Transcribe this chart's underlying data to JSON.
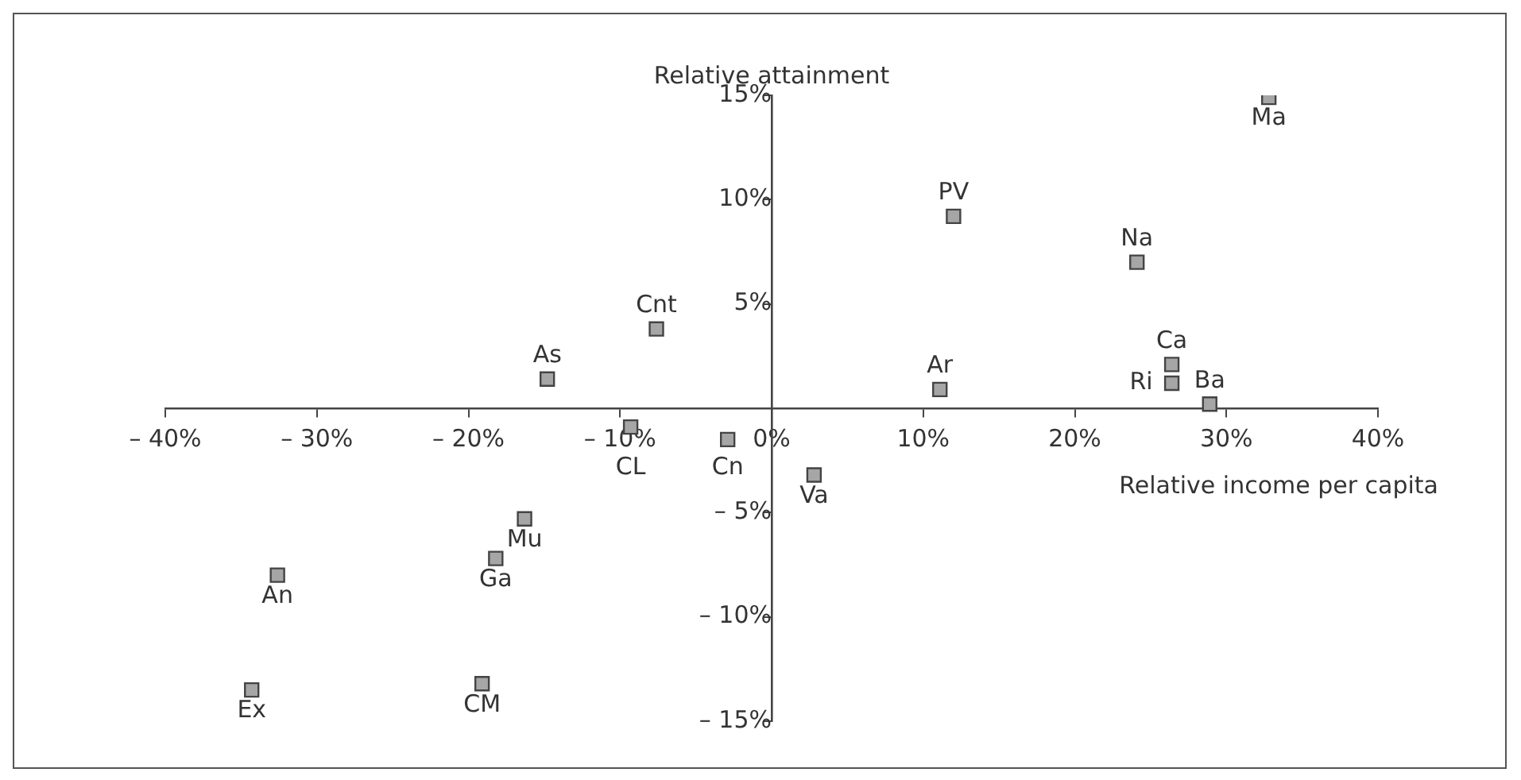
{
  "chart_data": {
    "type": "scatter",
    "xlabel": "Relative income per capita",
    "ylabel": "Relative attainment",
    "x": [
      -14.8,
      -7.6,
      -9.3,
      -2.9,
      -16.3,
      -18.2,
      -32.6,
      -34.3,
      -19.1,
      32.8,
      12.0,
      24.1,
      26.4,
      26.4,
      28.9,
      11.1,
      2.8
    ],
    "values": [
      1.4,
      3.8,
      -0.9,
      -1.5,
      -5.3,
      -7.2,
      -8.0,
      -13.5,
      -13.2,
      14.9,
      9.2,
      7.0,
      2.1,
      1.2,
      0.2,
      0.9,
      -3.2
    ],
    "color": "#a6a6a6",
    "marker": "square",
    "annotations": [
      {
        "text": "As",
        "x": -14.8,
        "y": 1.4
      },
      {
        "text": "Cnt",
        "x": -7.6,
        "y": 3.8
      },
      {
        "text": "CL",
        "x": -9.3,
        "y": -0.9
      },
      {
        "text": "Cn",
        "x": -2.9,
        "y": -1.5
      },
      {
        "text": "Mu",
        "x": -16.3,
        "y": -5.3
      },
      {
        "text": "Ga",
        "x": -18.2,
        "y": -7.2
      },
      {
        "text": "An",
        "x": -32.6,
        "y": -8.0
      },
      {
        "text": "Ex",
        "x": -34.3,
        "y": -13.5
      },
      {
        "text": "CM",
        "x": -19.1,
        "y": -13.2
      },
      {
        "text": "Ma",
        "x": 32.8,
        "y": 14.9
      },
      {
        "text": "PV",
        "x": 12.0,
        "y": 9.2
      },
      {
        "text": "Na",
        "x": 24.1,
        "y": 7.0
      },
      {
        "text": "Ca",
        "x": 26.4,
        "y": 2.1
      },
      {
        "text": "Ri",
        "x": 26.4,
        "y": 1.2
      },
      {
        "text": "Ba",
        "x": 28.9,
        "y": 0.2
      },
      {
        "text": "Ar",
        "x": 11.1,
        "y": 0.9
      },
      {
        "text": "Va",
        "x": 2.8,
        "y": -3.2
      }
    ],
    "xlim": [
      -40,
      40
    ],
    "xticks": [
      {
        "value": -40,
        "label": "– 40%"
      },
      {
        "value": -30,
        "label": "– 30%"
      },
      {
        "value": -20,
        "label": "– 20%"
      },
      {
        "value": -10,
        "label": "– 10%"
      },
      {
        "value": 0,
        "label": "0%"
      },
      {
        "value": 10,
        "label": "10%"
      },
      {
        "value": 20,
        "label": "20%"
      },
      {
        "value": 30,
        "label": "30%"
      },
      {
        "value": 40,
        "label": "40%"
      }
    ],
    "ylim": [
      -15,
      15
    ],
    "yticks": [
      {
        "value": -15,
        "label": "– 15%"
      },
      {
        "value": -10,
        "label": "– 10%"
      },
      {
        "value": -5,
        "label": "– 5%"
      },
      {
        "value": 0,
        "label": null
      },
      {
        "value": 5,
        "label": "5%"
      },
      {
        "value": 10,
        "label": "10%"
      },
      {
        "value": 15,
        "label": "15%"
      }
    ],
    "grid": false,
    "legend": false
  }
}
